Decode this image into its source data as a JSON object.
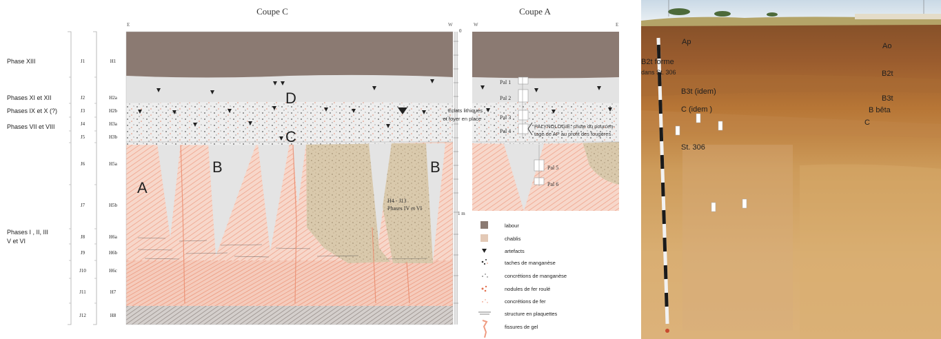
{
  "titles": {
    "coupe_c": "Coupe C",
    "coupe_a": "Coupe A"
  },
  "orient": {
    "c_left": "E",
    "c_right": "W",
    "a_left": "W",
    "a_right": "E"
  },
  "scale": {
    "top": "0",
    "bottom": "1 m"
  },
  "phases": [
    "Phase XIII",
    "Phases XI et XII",
    "Phases IX et X (?)",
    "Phases VII et VIII",
    "Phases I , II, III",
    "V et VI"
  ],
  "j_labels": [
    "J1",
    "J2",
    "J3",
    "J4",
    "J5",
    "J6",
    "J7",
    "J8",
    "J9",
    "J10",
    "J11",
    "J12"
  ],
  "h_labels": [
    "H1",
    "H2a",
    "H2b",
    "H3a",
    "H3b",
    "H5a",
    "H5b",
    "H6a",
    "H6b",
    "H6c",
    "H7",
    "H8"
  ],
  "section_letters": {
    "d": "D",
    "c": "C",
    "b1": "B",
    "b2": "B",
    "a": "A"
  },
  "chablis_label": [
    "H4 - J13",
    "Phases IV et VI"
  ],
  "eclats_note": [
    "Eclats lithiques",
    "et foyer en place"
  ],
  "palynologie_note": [
    "PALYNOLOGIE: chute du pourcen-",
    "tage de AP au profit des fougères"
  ],
  "pal_labels": [
    "Pal 1",
    "Pal 2",
    "Pal 3",
    "Pal 4",
    "Pal 5",
    "Pal 6"
  ],
  "legend": [
    "labour",
    "chablis",
    "artefacts",
    "taches de manganèse",
    "concrétions de manganèse",
    "nodules de fer roulé",
    "concrétions de fer",
    "structure en plaquettes",
    "fissures de gel"
  ],
  "photo_labels": {
    "ap": "Ap",
    "ao": "Ao",
    "b2t_l1": "B2t forme",
    "b2t_l2": "dans St. 306",
    "b2t_r": "B2t",
    "b3t_l": "B3t (idem)",
    "b3t_r": "B3t",
    "c_l": "C (idem )",
    "b_beta": "B bêta",
    "c_r": "C",
    "st306": "St. 306"
  },
  "colors": {
    "labour": "#8b7a72",
    "chablis": "#d8c8ad",
    "grey_layer": "#e3e3e3",
    "loess": "#f6d4c6",
    "hatch": "#f0a58c"
  }
}
